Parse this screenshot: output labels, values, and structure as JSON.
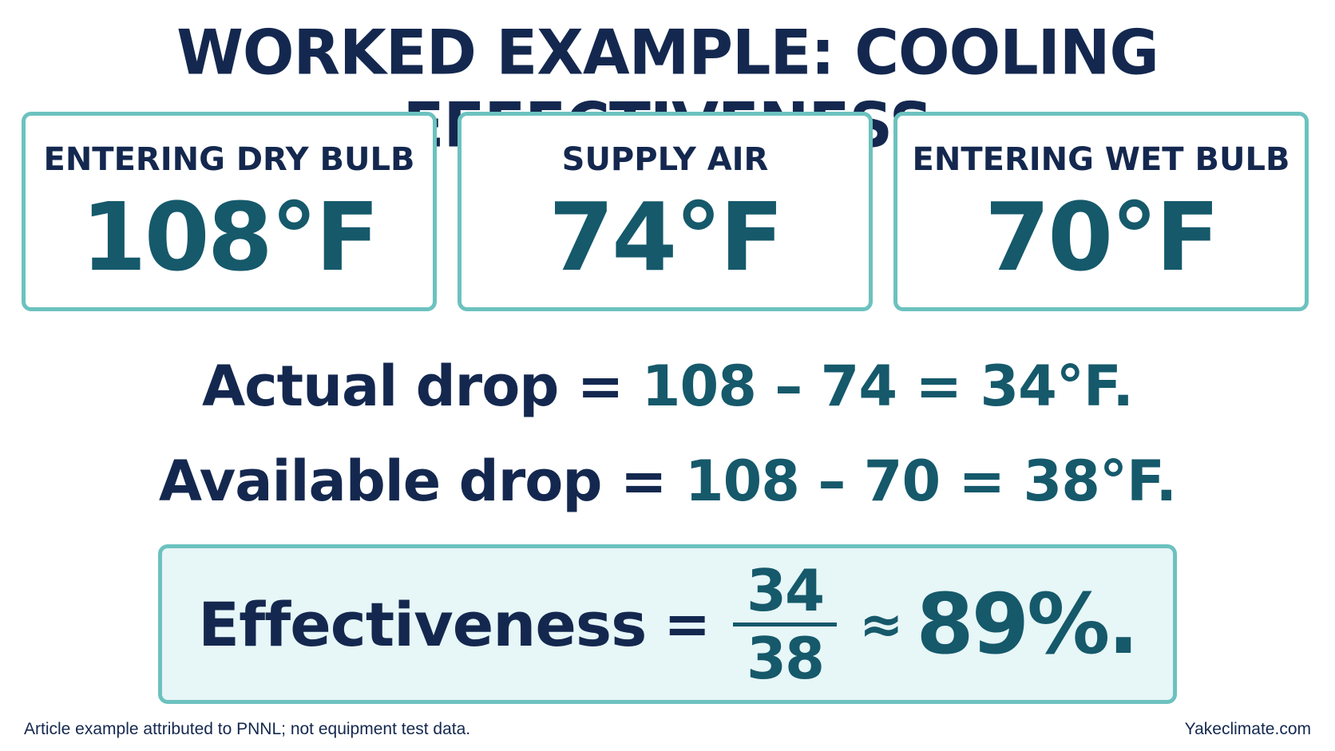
{
  "title": "WORKED EXAMPLE: COOLING EFFECTIVENESS",
  "cards": [
    {
      "label": "ENTERING DRY BULB",
      "value": "108°F"
    },
    {
      "label": "SUPPLY AIR",
      "value": "74°F"
    },
    {
      "label": "ENTERING WET BULB",
      "value": "70°F"
    }
  ],
  "equations": {
    "actual": {
      "label": "Actual drop =",
      "expression": "108 – 74 = 34°F."
    },
    "available": {
      "label": "Available drop =",
      "expression": "108 – 70 = 38°F."
    }
  },
  "result": {
    "label": "Effectiveness",
    "equals": "=",
    "numerator": "34",
    "denominator": "38",
    "approx": "≈",
    "value": "89%."
  },
  "footer": {
    "note": "Article example attributed to PNNL; not equipment test data.",
    "brand": "Yakeclimate.com"
  },
  "colors": {
    "navy": "#14284f",
    "teal": "#15596b",
    "border": "#6cc2bf",
    "result_bg": "#e7f6f7"
  }
}
